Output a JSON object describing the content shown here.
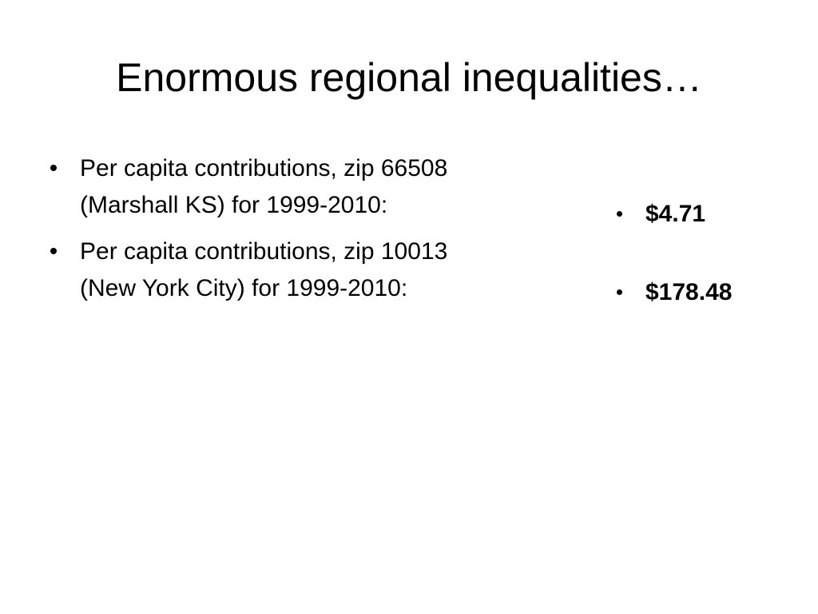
{
  "slide": {
    "title": "Enormous regional inequalities…",
    "left_bullets": [
      {
        "lines": [
          "Per capita contributions, zip 66508",
          "(Marshall KS) for 1999-2010:"
        ]
      },
      {
        "lines": [
          "Per capita contributions, zip 10013",
          "(New York City) for 1999-2010:"
        ]
      }
    ],
    "right_bullets": [
      "$4.71",
      "$178.48"
    ]
  }
}
